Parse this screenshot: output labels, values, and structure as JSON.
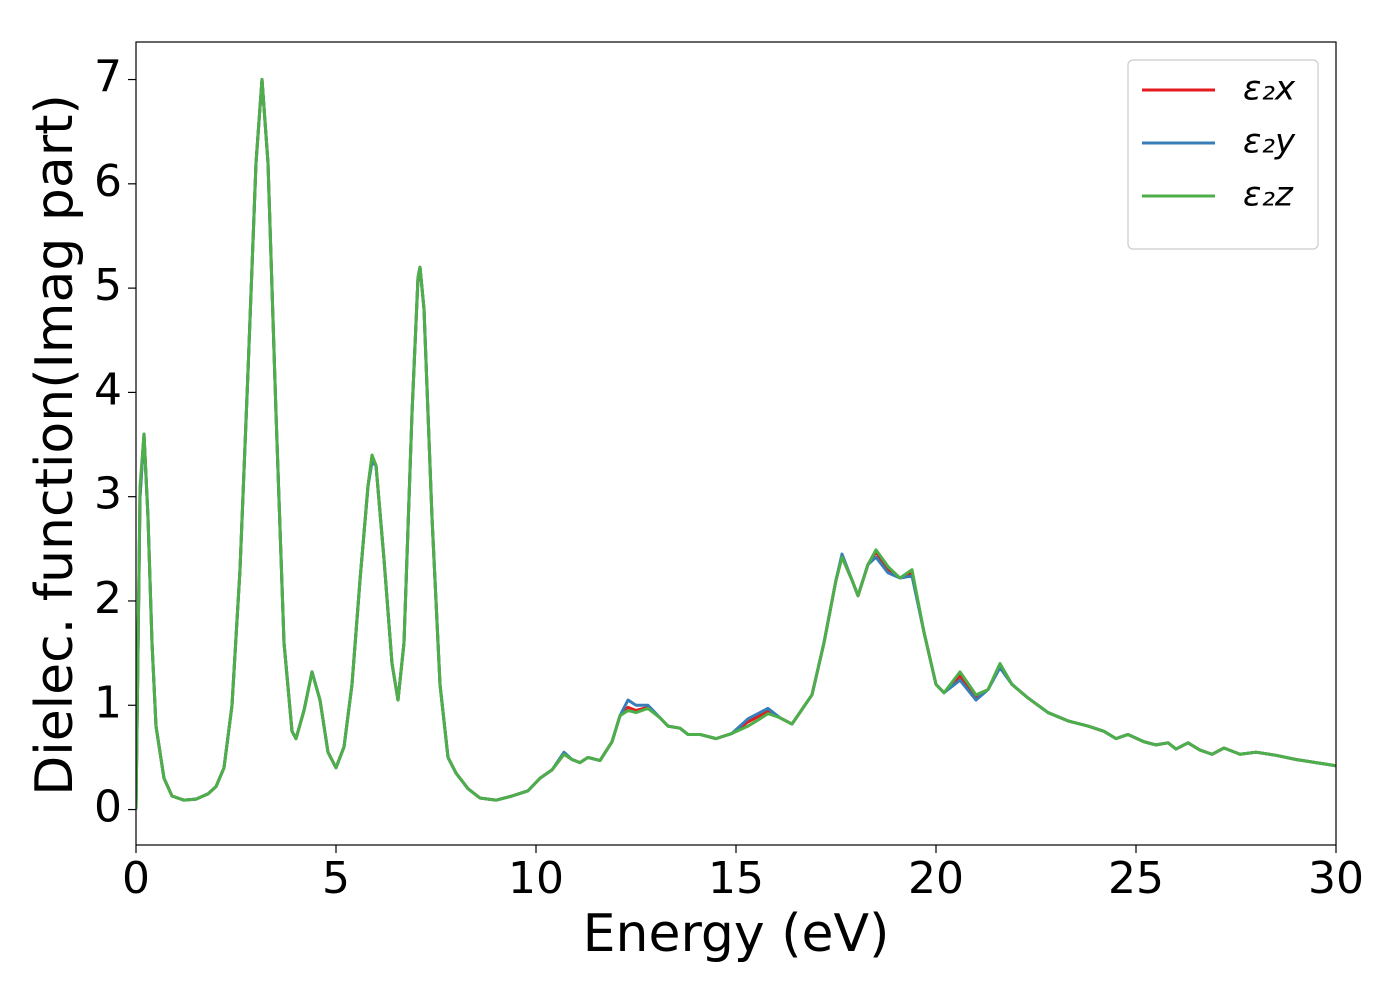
{
  "chart_data": {
    "type": "line",
    "xlabel": "Energy (eV)",
    "ylabel": "Dielec. function(Imag part)",
    "xlim": [
      0,
      30
    ],
    "ylim": [
      -0.34,
      7.36
    ],
    "xticks": [
      0,
      5,
      10,
      15,
      20,
      25,
      30
    ],
    "yticks": [
      0,
      1,
      2,
      3,
      4,
      5,
      6,
      7
    ],
    "legend": "upper right",
    "x": [
      0,
      0.05,
      0.1,
      0.2,
      0.3,
      0.4,
      0.5,
      0.7,
      0.9,
      1.2,
      1.5,
      1.8,
      2.0,
      2.2,
      2.4,
      2.6,
      2.8,
      3.0,
      3.15,
      3.3,
      3.5,
      3.7,
      3.9,
      4.0,
      4.2,
      4.4,
      4.6,
      4.8,
      5.0,
      5.2,
      5.4,
      5.6,
      5.8,
      5.9,
      6.0,
      6.2,
      6.4,
      6.55,
      6.7,
      6.9,
      7.05,
      7.1,
      7.2,
      7.4,
      7.6,
      7.8,
      8.0,
      8.3,
      8.6,
      9.0,
      9.4,
      9.8,
      10.1,
      10.4,
      10.7,
      10.9,
      11.1,
      11.3,
      11.6,
      11.9,
      12.1,
      12.3,
      12.5,
      12.8,
      13.1,
      13.3,
      13.6,
      13.8,
      14.1,
      14.5,
      14.9,
      15.3,
      15.6,
      15.8,
      16.1,
      16.4,
      16.9,
      17.2,
      17.5,
      17.65,
      17.9,
      18.05,
      18.3,
      18.5,
      18.8,
      19.1,
      19.4,
      19.7,
      20.0,
      20.2,
      20.6,
      21.0,
      21.3,
      21.6,
      21.9,
      22.3,
      22.8,
      23.3,
      23.8,
      24.2,
      24.5,
      24.8,
      25.2,
      25.5,
      25.8,
      26.0,
      26.3,
      26.6,
      26.9,
      27.2,
      27.6,
      28.0,
      28.5,
      29.0,
      29.5,
      30.0
    ],
    "series": [
      {
        "name": "ε₂x",
        "color": "#e41a1c",
        "values": [
          0,
          1.5,
          3.0,
          3.6,
          2.8,
          1.6,
          0.8,
          0.3,
          0.13,
          0.09,
          0.1,
          0.15,
          0.22,
          0.4,
          1.0,
          2.3,
          4.2,
          6.2,
          7.0,
          6.2,
          3.8,
          1.6,
          0.75,
          0.68,
          0.95,
          1.32,
          1.05,
          0.55,
          0.4,
          0.6,
          1.2,
          2.2,
          3.1,
          3.38,
          3.3,
          2.4,
          1.4,
          1.05,
          1.6,
          3.8,
          5.1,
          5.2,
          4.8,
          2.8,
          1.2,
          0.5,
          0.35,
          0.2,
          0.11,
          0.09,
          0.13,
          0.18,
          0.3,
          0.38,
          0.53,
          0.48,
          0.45,
          0.5,
          0.47,
          0.65,
          0.9,
          0.98,
          0.95,
          0.98,
          0.88,
          0.8,
          0.78,
          0.72,
          0.72,
          0.68,
          0.73,
          0.84,
          0.9,
          0.95,
          0.88,
          0.82,
          1.1,
          1.6,
          2.2,
          2.42,
          2.2,
          2.05,
          2.35,
          2.47,
          2.3,
          2.22,
          2.27,
          1.7,
          1.2,
          1.12,
          1.28,
          1.08,
          1.15,
          1.38,
          1.2,
          1.07,
          0.93,
          0.85,
          0.8,
          0.75,
          0.68,
          0.72,
          0.65,
          0.62,
          0.64,
          0.58,
          0.64,
          0.57,
          0.53,
          0.59,
          0.53,
          0.55,
          0.52,
          0.48,
          0.45,
          0.42
        ]
      },
      {
        "name": "ε₂y",
        "color": "#377eb8",
        "values": [
          0,
          1.5,
          3.0,
          3.6,
          2.8,
          1.6,
          0.8,
          0.3,
          0.13,
          0.09,
          0.1,
          0.15,
          0.22,
          0.4,
          1.0,
          2.3,
          4.2,
          6.2,
          7.0,
          6.2,
          3.8,
          1.6,
          0.75,
          0.68,
          0.95,
          1.32,
          1.05,
          0.55,
          0.4,
          0.6,
          1.2,
          2.2,
          3.1,
          3.33,
          3.3,
          2.4,
          1.4,
          1.05,
          1.6,
          3.8,
          5.1,
          5.2,
          4.8,
          2.8,
          1.2,
          0.5,
          0.35,
          0.2,
          0.11,
          0.09,
          0.13,
          0.18,
          0.3,
          0.38,
          0.55,
          0.48,
          0.45,
          0.5,
          0.47,
          0.65,
          0.9,
          1.05,
          1.0,
          1.0,
          0.88,
          0.8,
          0.78,
          0.72,
          0.72,
          0.68,
          0.73,
          0.87,
          0.93,
          0.97,
          0.88,
          0.82,
          1.1,
          1.6,
          2.2,
          2.45,
          2.2,
          2.05,
          2.35,
          2.42,
          2.27,
          2.22,
          2.24,
          1.7,
          1.2,
          1.12,
          1.24,
          1.05,
          1.15,
          1.36,
          1.2,
          1.07,
          0.93,
          0.85,
          0.8,
          0.75,
          0.68,
          0.72,
          0.65,
          0.62,
          0.64,
          0.58,
          0.64,
          0.57,
          0.53,
          0.59,
          0.53,
          0.55,
          0.52,
          0.48,
          0.45,
          0.42
        ]
      },
      {
        "name": "ε₂z",
        "color": "#4daf4a",
        "values": [
          0,
          1.5,
          3.1,
          3.6,
          2.8,
          1.6,
          0.8,
          0.3,
          0.13,
          0.09,
          0.1,
          0.15,
          0.22,
          0.4,
          1.0,
          2.3,
          4.2,
          6.2,
          7.0,
          6.2,
          3.8,
          1.6,
          0.75,
          0.68,
          0.95,
          1.32,
          1.05,
          0.55,
          0.4,
          0.6,
          1.2,
          2.2,
          3.1,
          3.4,
          3.3,
          2.4,
          1.4,
          1.05,
          1.6,
          3.8,
          5.1,
          5.2,
          4.8,
          2.8,
          1.2,
          0.5,
          0.35,
          0.2,
          0.11,
          0.09,
          0.13,
          0.18,
          0.3,
          0.38,
          0.53,
          0.48,
          0.45,
          0.5,
          0.47,
          0.65,
          0.9,
          0.95,
          0.93,
          0.97,
          0.88,
          0.8,
          0.78,
          0.72,
          0.72,
          0.68,
          0.73,
          0.8,
          0.87,
          0.92,
          0.88,
          0.82,
          1.1,
          1.6,
          2.2,
          2.42,
          2.2,
          2.05,
          2.35,
          2.49,
          2.33,
          2.22,
          2.3,
          1.7,
          1.2,
          1.12,
          1.32,
          1.1,
          1.15,
          1.4,
          1.2,
          1.07,
          0.93,
          0.85,
          0.8,
          0.75,
          0.68,
          0.72,
          0.65,
          0.62,
          0.64,
          0.58,
          0.64,
          0.57,
          0.53,
          0.59,
          0.53,
          0.55,
          0.52,
          0.48,
          0.45,
          0.42
        ]
      }
    ]
  }
}
